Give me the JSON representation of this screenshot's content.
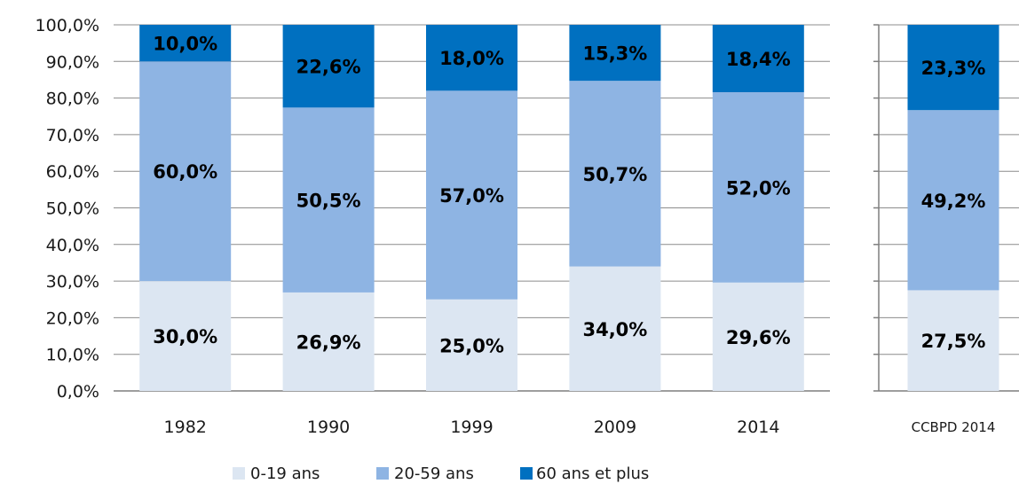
{
  "chart_data": {
    "type": "bar",
    "stacked": true,
    "percent_axis": true,
    "ylim": [
      0,
      100
    ],
    "yticks": [
      "0,0%",
      "10,0%",
      "20,0%",
      "30,0%",
      "40,0%",
      "50,0%",
      "60,0%",
      "70,0%",
      "80,0%",
      "90,0%",
      "100,0%"
    ],
    "grid": true,
    "legend_position": "bottom",
    "title": "",
    "xlabel": "",
    "ylabel": "",
    "categories": [
      "1982",
      "1990",
      "1999",
      "2009",
      "2014"
    ],
    "extra_category": "CCBPD 2014",
    "series": [
      {
        "name": "0-19 ans",
        "color": "#dce6f2",
        "values": [
          30.0,
          26.9,
          25.0,
          34.0,
          29.6
        ],
        "labels": [
          "30,0%",
          "26,9%",
          "25,0%",
          "34,0%",
          "29,6%"
        ],
        "extra_value": 27.5,
        "extra_label": "27,5%"
      },
      {
        "name": "20-59 ans",
        "color": "#8eb4e3",
        "values": [
          60.0,
          50.5,
          57.0,
          50.7,
          52.0
        ],
        "labels": [
          "60,0%",
          "50,5%",
          "57,0%",
          "50,7%",
          "52,0%"
        ],
        "extra_value": 49.2,
        "extra_label": "49,2%"
      },
      {
        "name": "60 ans et plus",
        "color": "#0070c0",
        "values": [
          10.0,
          22.6,
          18.0,
          15.3,
          18.4
        ],
        "labels": [
          "10,0%",
          "22,6%",
          "18,0%",
          "15,3%",
          "18,4%"
        ],
        "extra_value": 23.3,
        "extra_label": "23,3%"
      }
    ]
  }
}
